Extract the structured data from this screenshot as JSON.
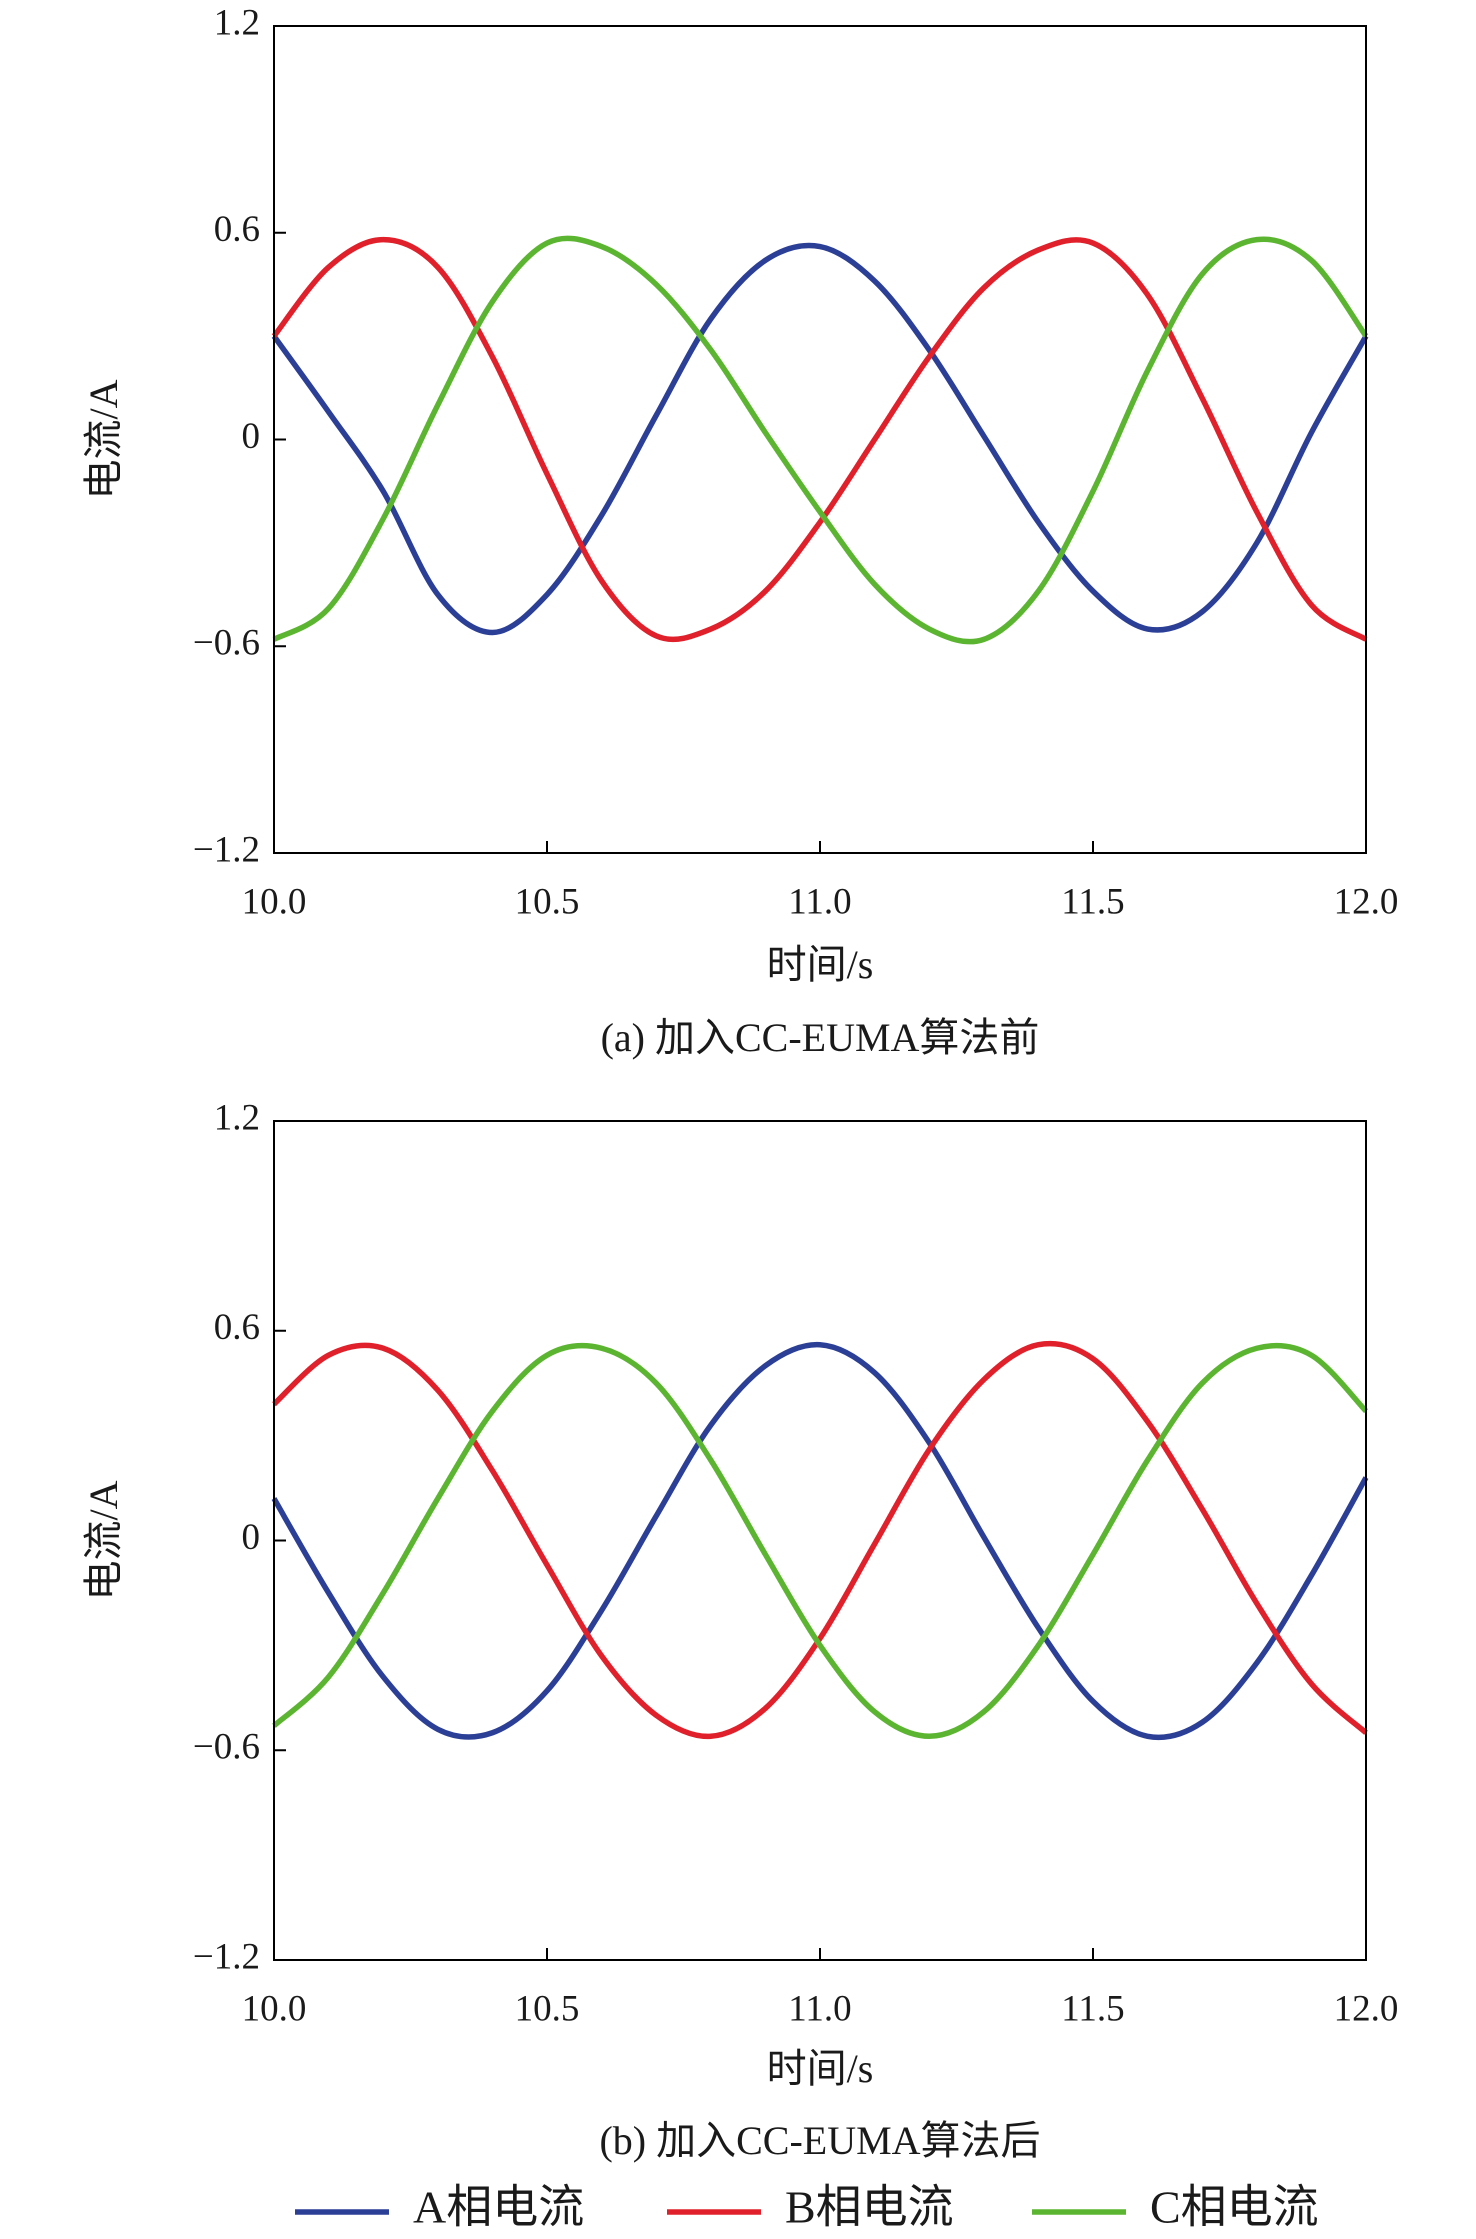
{
  "chart_data": [
    {
      "type": "line",
      "title": "(a) 加入CC-EUMA算法前",
      "x_label": "时间/s",
      "y_label": "电流/A",
      "x": [
        10.0,
        10.1,
        10.2,
        10.3,
        10.4,
        10.5,
        10.6,
        10.7,
        10.8,
        10.9,
        11.0,
        11.1,
        11.2,
        11.3,
        11.4,
        11.5,
        11.6,
        11.7,
        11.8,
        11.9,
        12.0
      ],
      "xlim": [
        10.0,
        12.0
      ],
      "ylim": [
        -1.2,
        1.2
      ],
      "xticks": [
        {
          "value": 10,
          "label": "10.0"
        },
        10.5,
        {
          "value": 11,
          "label": "11.0"
        },
        11.5,
        {
          "value": 12,
          "label": "12.0"
        }
      ],
      "yticks": [
        {
          "value": -1.2,
          "label": "−1.2"
        },
        {
          "value": -0.6,
          "label": "−0.6"
        },
        0,
        0.6,
        1.2
      ],
      "series": [
        {
          "color": "#2b3f97",
          "values": [
            0.3,
            0.08,
            -0.15,
            -0.45,
            -0.56,
            -0.45,
            -0.22,
            0.07,
            0.35,
            0.52,
            0.56,
            0.46,
            0.26,
            0.01,
            -0.24,
            -0.44,
            -0.55,
            -0.5,
            -0.3,
            0.02,
            0.3
          ]
        },
        {
          "color": "#e0202a",
          "values": [
            0.3,
            0.5,
            0.58,
            0.5,
            0.24,
            -0.1,
            -0.41,
            -0.57,
            -0.55,
            -0.44,
            -0.24,
            0.0,
            0.24,
            0.44,
            0.55,
            0.57,
            0.42,
            0.12,
            -0.21,
            -0.48,
            -0.58
          ]
        },
        {
          "color": "#5cb531",
          "values": [
            -0.58,
            -0.49,
            -0.23,
            0.1,
            0.4,
            0.57,
            0.56,
            0.45,
            0.26,
            0.02,
            -0.21,
            -0.42,
            -0.55,
            -0.58,
            -0.44,
            -0.15,
            0.2,
            0.48,
            0.58,
            0.52,
            0.3
          ]
        }
      ]
    },
    {
      "type": "line",
      "title": "(b) 加入CC-EUMA算法后",
      "x_label": "时间/s",
      "y_label": "电流/A",
      "x": [
        10.0,
        10.1,
        10.2,
        10.3,
        10.4,
        10.5,
        10.6,
        10.7,
        10.8,
        10.9,
        11.0,
        11.1,
        11.2,
        11.3,
        11.4,
        11.5,
        11.6,
        11.7,
        11.8,
        11.9,
        12.0
      ],
      "xlim": [
        10.0,
        12.0
      ],
      "ylim": [
        -1.2,
        1.2
      ],
      "xticks": [
        {
          "value": 10,
          "label": "10.0"
        },
        10.5,
        {
          "value": 11,
          "label": "11.0"
        },
        11.5,
        {
          "value": 12,
          "label": "12.0"
        }
      ],
      "yticks": [
        {
          "value": -1.2,
          "label": "−1.2"
        },
        {
          "value": -0.6,
          "label": "−0.6"
        },
        0,
        0.6,
        1.2
      ],
      "legend": "bottom",
      "series": [
        {
          "name": "A相电流",
          "color": "#2b3f97",
          "values": [
            0.12,
            -0.15,
            -0.39,
            -0.54,
            -0.55,
            -0.43,
            -0.2,
            0.07,
            0.33,
            0.5,
            0.56,
            0.48,
            0.28,
            0.01,
            -0.25,
            -0.46,
            -0.56,
            -0.52,
            -0.35,
            -0.1,
            0.18
          ]
        },
        {
          "name": "B相电流",
          "color": "#e0202a",
          "values": [
            0.39,
            0.53,
            0.55,
            0.43,
            0.2,
            -0.07,
            -0.33,
            -0.5,
            -0.56,
            -0.48,
            -0.28,
            -0.01,
            0.26,
            0.46,
            0.56,
            0.52,
            0.34,
            0.09,
            -0.18,
            -0.41,
            -0.55
          ]
        },
        {
          "name": "C相电流",
          "color": "#5cb531",
          "values": [
            -0.53,
            -0.39,
            -0.15,
            0.12,
            0.37,
            0.53,
            0.55,
            0.45,
            0.23,
            -0.04,
            -0.3,
            -0.49,
            -0.56,
            -0.49,
            -0.3,
            -0.04,
            0.23,
            0.45,
            0.55,
            0.53,
            0.37
          ]
        }
      ]
    }
  ]
}
